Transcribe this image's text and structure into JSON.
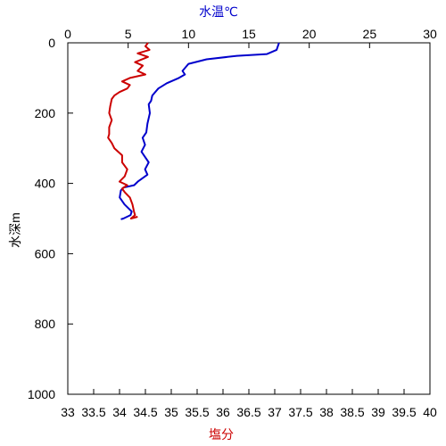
{
  "chart_data": {
    "type": "line",
    "top_axis": {
      "label": "水温℃",
      "label_color": "#0000cc",
      "range": [
        0,
        30
      ],
      "ticks": [
        "0",
        "5",
        "10",
        "15",
        "20",
        "25",
        "30"
      ]
    },
    "bottom_axis": {
      "label": "塩分",
      "label_color": "#cc0000",
      "range": [
        33,
        40
      ],
      "ticks": [
        "33",
        "33.5",
        "34",
        "34.5",
        "35",
        "35.5",
        "36",
        "36.5",
        "37",
        "37.5",
        "38",
        "38.5",
        "39",
        "39.5",
        "40"
      ]
    },
    "y_axis": {
      "label": "水深m",
      "range": [
        0,
        1000
      ],
      "inverted": true,
      "ticks": [
        "0",
        "200",
        "400",
        "600",
        "800",
        "1000"
      ]
    },
    "grid": false,
    "series": [
      {
        "color": "#0000cc",
        "axis": "top",
        "points": [
          [
            17.5,
            0
          ],
          [
            17.3,
            20
          ],
          [
            16.5,
            32
          ],
          [
            14.0,
            37
          ],
          [
            11.5,
            47
          ],
          [
            10.0,
            60
          ],
          [
            9.5,
            80
          ],
          [
            9.7,
            90
          ],
          [
            9.2,
            100
          ],
          [
            8.2,
            115
          ],
          [
            7.5,
            130
          ],
          [
            7.0,
            150
          ],
          [
            6.9,
            165
          ],
          [
            6.7,
            175
          ],
          [
            6.8,
            200
          ],
          [
            6.6,
            230
          ],
          [
            6.5,
            255
          ],
          [
            6.2,
            270
          ],
          [
            6.4,
            290
          ],
          [
            6.1,
            310
          ],
          [
            6.3,
            320
          ],
          [
            6.7,
            340
          ],
          [
            6.4,
            360
          ],
          [
            6.6,
            375
          ],
          [
            6.2,
            385
          ],
          [
            5.8,
            395
          ],
          [
            5.5,
            405
          ],
          [
            4.6,
            412
          ],
          [
            4.4,
            420
          ],
          [
            4.3,
            440
          ],
          [
            4.7,
            460
          ],
          [
            5.3,
            480
          ],
          [
            5.2,
            490
          ],
          [
            4.6,
            500
          ],
          [
            4.4,
            502
          ]
        ]
      },
      {
        "color": "#cc0000",
        "axis": "bottom",
        "points": [
          [
            34.55,
            0
          ],
          [
            34.5,
            10
          ],
          [
            34.58,
            20
          ],
          [
            34.35,
            30
          ],
          [
            34.55,
            40
          ],
          [
            34.3,
            55
          ],
          [
            34.45,
            65
          ],
          [
            34.35,
            80
          ],
          [
            34.5,
            90
          ],
          [
            34.2,
            100
          ],
          [
            34.05,
            110
          ],
          [
            34.2,
            120
          ],
          [
            34.15,
            130
          ],
          [
            34.0,
            140
          ],
          [
            33.9,
            150
          ],
          [
            33.85,
            160
          ],
          [
            33.82,
            180
          ],
          [
            33.8,
            200
          ],
          [
            33.85,
            220
          ],
          [
            33.8,
            240
          ],
          [
            33.8,
            260
          ],
          [
            33.78,
            270
          ],
          [
            33.85,
            285
          ],
          [
            33.9,
            300
          ],
          [
            34.05,
            320
          ],
          [
            34.05,
            340
          ],
          [
            34.15,
            360
          ],
          [
            34.1,
            380
          ],
          [
            34.0,
            395
          ],
          [
            34.15,
            405
          ],
          [
            34.05,
            415
          ],
          [
            34.1,
            425
          ],
          [
            34.2,
            440
          ],
          [
            34.25,
            460
          ],
          [
            34.28,
            480
          ],
          [
            34.3,
            490
          ],
          [
            34.22,
            500
          ],
          [
            34.35,
            495
          ]
        ]
      }
    ]
  }
}
